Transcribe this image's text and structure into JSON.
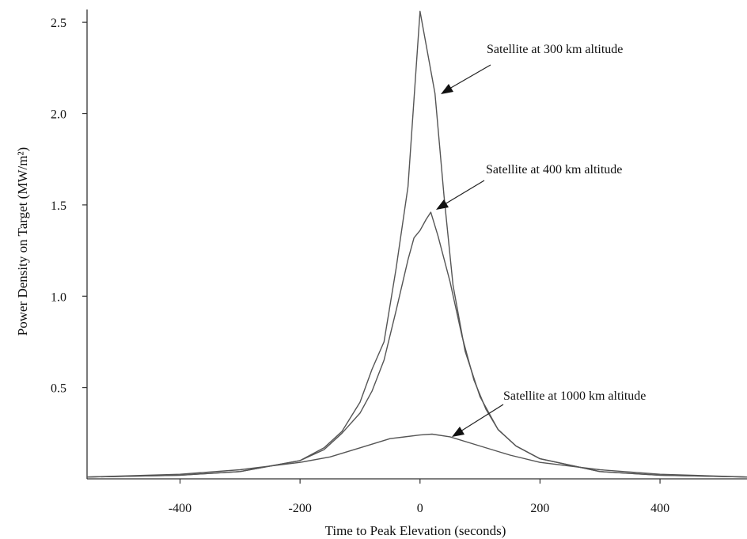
{
  "chart_data": {
    "type": "line",
    "xlabel": "Time to Peak Elevation (seconds)",
    "ylabel": "Power Density on Target (MW/m²)",
    "xlim": [
      -555,
      545
    ],
    "ylim": [
      0,
      2.57
    ],
    "x_ticks": [
      -400,
      -200,
      0,
      200,
      400
    ],
    "x_tick_labels": [
      "-400",
      "-200",
      "0",
      "200",
      "400"
    ],
    "y_ticks": [
      0.5,
      1.0,
      1.5,
      2.0,
      2.5
    ],
    "y_tick_labels": [
      "0.5",
      "1.0",
      "1.5",
      "2.0",
      "2.5"
    ],
    "grid": false,
    "series": [
      {
        "annotation": "Satellite at 300 km altitude",
        "color": "#555555",
        "points": [
          [
            -555,
            0.01
          ],
          [
            -400,
            0.02
          ],
          [
            -300,
            0.04
          ],
          [
            -200,
            0.1
          ],
          [
            -160,
            0.17
          ],
          [
            -130,
            0.26
          ],
          [
            -100,
            0.42
          ],
          [
            -80,
            0.6
          ],
          [
            -60,
            0.75
          ],
          [
            -40,
            1.15
          ],
          [
            -20,
            1.6
          ],
          [
            0,
            2.56
          ],
          [
            25,
            2.11
          ],
          [
            40,
            1.55
          ],
          [
            55,
            1.06
          ],
          [
            75,
            0.7
          ],
          [
            100,
            0.45
          ],
          [
            130,
            0.27
          ],
          [
            160,
            0.18
          ],
          [
            200,
            0.11
          ],
          [
            300,
            0.04
          ],
          [
            400,
            0.02
          ],
          [
            545,
            0.01
          ]
        ]
      },
      {
        "annotation": "Satellite at 400 km altitude",
        "color": "#555555",
        "points": [
          [
            -555,
            0.01
          ],
          [
            -400,
            0.02
          ],
          [
            -300,
            0.04
          ],
          [
            -200,
            0.1
          ],
          [
            -160,
            0.16
          ],
          [
            -130,
            0.25
          ],
          [
            -100,
            0.36
          ],
          [
            -80,
            0.48
          ],
          [
            -60,
            0.65
          ],
          [
            -40,
            0.92
          ],
          [
            -20,
            1.2
          ],
          [
            -10,
            1.32
          ],
          [
            0,
            1.36
          ],
          [
            10,
            1.42
          ],
          [
            18,
            1.46
          ],
          [
            30,
            1.33
          ],
          [
            50,
            1.08
          ],
          [
            70,
            0.78
          ],
          [
            90,
            0.54
          ],
          [
            110,
            0.38
          ],
          [
            130,
            0.27
          ],
          [
            160,
            0.18
          ],
          [
            200,
            0.11
          ],
          [
            300,
            0.04
          ],
          [
            400,
            0.02
          ],
          [
            545,
            0.01
          ]
        ]
      },
      {
        "annotation": "Satellite at 1000 km altitude",
        "color": "#555555",
        "points": [
          [
            -555,
            0.01
          ],
          [
            -400,
            0.025
          ],
          [
            -300,
            0.05
          ],
          [
            -200,
            0.09
          ],
          [
            -150,
            0.12
          ],
          [
            -100,
            0.17
          ],
          [
            -50,
            0.22
          ],
          [
            0,
            0.24
          ],
          [
            20,
            0.245
          ],
          [
            50,
            0.23
          ],
          [
            100,
            0.18
          ],
          [
            150,
            0.13
          ],
          [
            200,
            0.09
          ],
          [
            300,
            0.05
          ],
          [
            400,
            0.025
          ],
          [
            545,
            0.01
          ]
        ]
      }
    ]
  }
}
